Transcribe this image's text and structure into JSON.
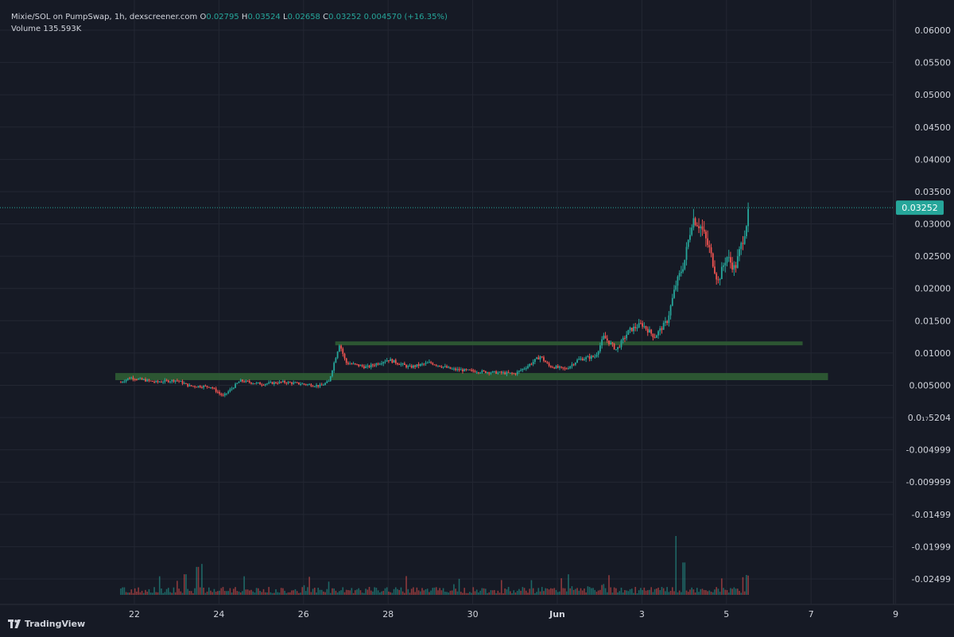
{
  "legend": {
    "symbol": "Mixie/SOL on PumpSwap, 1h, dexscreener.com",
    "o_label": "O",
    "o_value": "0.02795",
    "h_label": "H",
    "h_value": "0.03524",
    "l_label": "L",
    "l_value": "0.02658",
    "c_label": "C",
    "c_value": "0.03252",
    "change": "0.004570 (+16.35%)",
    "volume_label": "Volume",
    "volume_value": "135.593K"
  },
  "branding": {
    "text": "TradingView"
  },
  "colors": {
    "background": "#161a25",
    "grid": "#232733",
    "up": "#26a69a",
    "down": "#ef5350",
    "zone": "#2f5d34",
    "axis_text": "#d1d4dc",
    "last_price_bg": "#26a69a"
  },
  "chart_data": {
    "type": "candlestick",
    "title": "Mixie/SOL on PumpSwap, 1h, dexscreener.com",
    "y_axis_ticks": [
      "0.06000",
      "0.05500",
      "0.05000",
      "0.04500",
      "0.04000",
      "0.03500",
      "0.03000",
      "0.02500",
      "0.02000",
      "0.01500",
      "0.01000",
      "0.005000",
      "0.0₁₇5204",
      "-0.004999",
      "-0.009999",
      "-0.01499",
      "-0.01999",
      "-0.02499"
    ],
    "x_axis_ticks": [
      "22",
      "24",
      "26",
      "28",
      "30",
      "Jun",
      "3",
      "5",
      "7",
      "9"
    ],
    "last_price": "0.03252",
    "grid": true,
    "price_path": [
      [
        21.6,
        0.0008
      ],
      [
        21.68,
        0.0055
      ],
      [
        21.9,
        0.0062
      ],
      [
        22.5,
        0.0055
      ],
      [
        23.0,
        0.0058
      ],
      [
        23.3,
        0.0049
      ],
      [
        23.8,
        0.0048
      ],
      [
        24.1,
        0.0033
      ],
      [
        24.3,
        0.0045
      ],
      [
        24.5,
        0.0057
      ],
      [
        25.0,
        0.0052
      ],
      [
        25.5,
        0.0055
      ],
      [
        26.0,
        0.0052
      ],
      [
        26.4,
        0.0049
      ],
      [
        26.6,
        0.0056
      ],
      [
        26.85,
        0.0115
      ],
      [
        27.0,
        0.0085
      ],
      [
        27.5,
        0.0078
      ],
      [
        28.0,
        0.009
      ],
      [
        28.5,
        0.0078
      ],
      [
        29.0,
        0.0085
      ],
      [
        29.5,
        0.0075
      ],
      [
        30.0,
        0.0072
      ],
      [
        30.5,
        0.007
      ],
      [
        31.0,
        0.0068
      ],
      [
        31.3,
        0.008
      ],
      [
        31.6,
        0.0095
      ],
      [
        31.8,
        0.008
      ],
      [
        32.2,
        0.0075
      ],
      [
        32.5,
        0.009
      ],
      [
        32.9,
        0.0095
      ],
      [
        33.1,
        0.0125
      ],
      [
        33.4,
        0.0105
      ],
      [
        33.7,
        0.0135
      ],
      [
        34.0,
        0.0145
      ],
      [
        34.3,
        0.0125
      ],
      [
        34.6,
        0.015
      ],
      [
        34.8,
        0.0205
      ],
      [
        35.0,
        0.024
      ],
      [
        35.2,
        0.031
      ],
      [
        35.4,
        0.0295
      ],
      [
        35.6,
        0.026
      ],
      [
        35.8,
        0.021
      ],
      [
        36.0,
        0.025
      ],
      [
        36.2,
        0.023
      ],
      [
        36.4,
        0.028
      ],
      [
        36.55,
        0.03252
      ]
    ],
    "zones": [
      {
        "x_start": 21.55,
        "x_end": 38.4,
        "y_low": 0.0058,
        "y_high": 0.0069
      },
      {
        "x_start": 26.75,
        "x_end": 37.8,
        "y_low": 0.0112,
        "y_high": 0.0118
      }
    ],
    "volume_spikes": [
      [
        21.65,
        0.9
      ],
      [
        23.2,
        0.14
      ],
      [
        23.5,
        0.19
      ],
      [
        23.6,
        0.21
      ],
      [
        26.6,
        0.09
      ],
      [
        31.4,
        0.1
      ],
      [
        34.8,
        0.4
      ],
      [
        35.0,
        0.22
      ],
      [
        36.4,
        0.12
      ]
    ]
  }
}
